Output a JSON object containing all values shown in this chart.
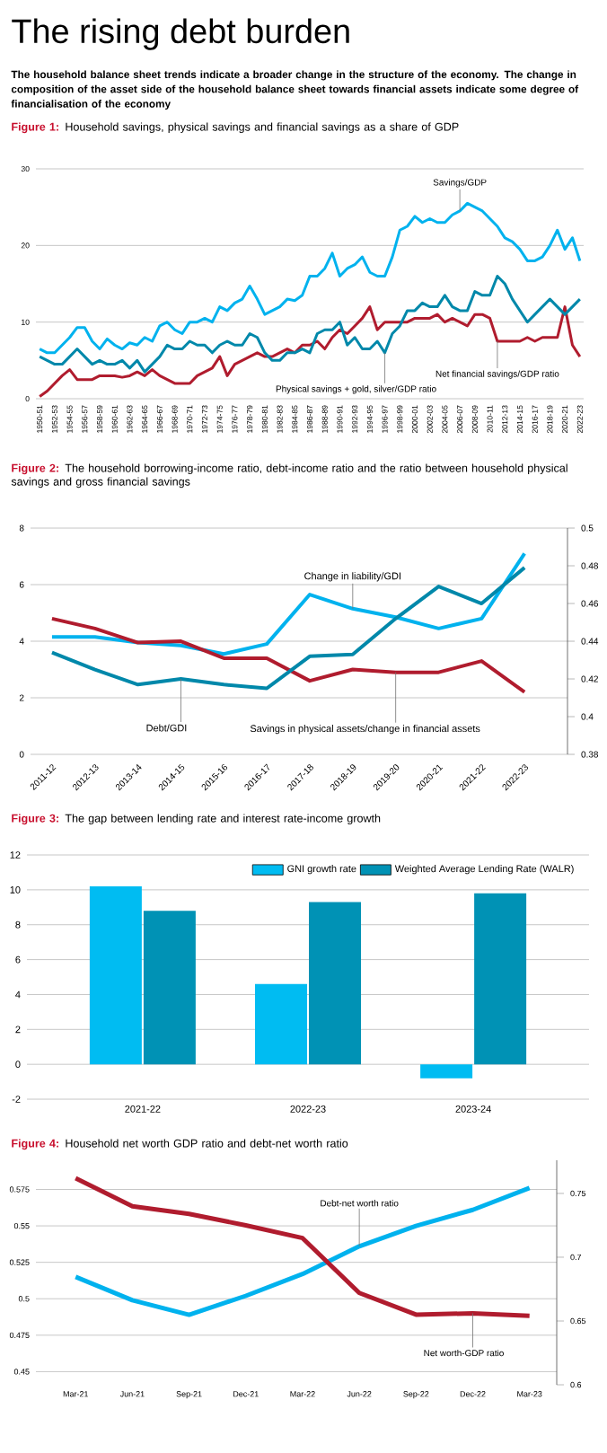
{
  "chart_data": [
    {
      "type": "other",
      "title": "The rising debt burden",
      "subtitle": "The household balance sheet trends indicate a broader change in the structure of the economy. The change in composition of the asset side of the household balance sheet towards financial assets indicate some degree of financialisation of the economy"
    },
    {
      "type": "line",
      "title": "**Figure 1:** Household savings, physical savings and financial savings as a share of GDP",
      "categories": [
        "1950-51",
        null,
        "1952-53",
        null,
        "1954-55",
        null,
        "1956-57",
        null,
        "1958-59",
        null,
        "1960-61",
        null,
        "1962-63",
        null,
        "1964-65",
        null,
        "1966-67",
        null,
        "1968-69",
        null,
        "1970-71",
        null,
        "1972-73",
        null,
        "1974-75",
        null,
        "1976-77",
        null,
        "1978-79",
        null,
        "1980-81",
        null,
        "1982-83",
        null,
        "1984-85",
        null,
        "1986-87",
        null,
        "1988-89",
        null,
        "1990-91",
        null,
        "1992-93",
        null,
        "1994-95",
        null,
        "1996-97",
        null,
        "1998-99",
        null,
        "2000-01",
        null,
        "2002-03",
        null,
        "2004-05",
        null,
        "2006-07",
        null,
        "2008-09",
        null,
        "2010-11",
        null,
        "2012-13",
        null,
        "2014-15",
        null,
        "2016-17",
        null,
        "2018-19",
        null,
        "2020-21",
        null,
        "2022-23"
      ],
      "series": [
        {
          "name": "Savings/GDP",
          "color": "#00b2ee",
          "values": [
            6.5,
            6,
            6,
            7,
            8,
            9.3,
            9.3,
            7.5,
            6.5,
            7.8,
            7,
            6.5,
            7.3,
            7,
            8,
            7.5,
            9.5,
            10,
            9,
            8.5,
            10,
            10,
            10.5,
            10,
            12,
            11.5,
            12.5,
            13,
            14.7,
            13,
            11,
            11.5,
            12,
            13,
            12.8,
            13.5,
            16,
            16,
            17,
            19,
            16,
            17,
            17.5,
            18.5,
            16.5,
            16,
            16,
            18.5,
            22,
            22.5,
            23.8,
            23,
            23.5,
            23,
            23,
            24,
            24.5,
            25.5,
            25,
            24.5,
            23.5,
            22.5,
            21,
            20.5,
            19.5,
            18,
            18,
            18.5,
            20,
            22,
            19.5,
            21,
            18
          ]
        },
        {
          "name": "Net financial savings/GDP ratio",
          "color": "#b01c2e",
          "values": [
            0.3,
            1,
            2,
            3,
            3.8,
            2.5,
            2.5,
            2.5,
            3,
            3,
            3,
            2.8,
            3,
            3.5,
            3,
            3.8,
            3,
            2.5,
            2,
            2,
            2,
            3,
            3.5,
            4,
            5.5,
            3,
            4.5,
            5,
            5.5,
            6,
            5.5,
            5.5,
            6,
            6.5,
            6,
            7,
            7,
            7.5,
            6.5,
            8,
            9,
            8.5,
            9.5,
            10.5,
            12,
            9,
            10,
            10,
            10,
            10,
            10.5,
            10.5,
            10.5,
            11,
            10,
            10.5,
            10,
            9.5,
            11,
            11,
            10.5,
            7.5,
            7.5,
            7.5,
            7.5,
            8,
            7.5,
            8,
            8,
            8,
            12,
            7,
            5.5
          ]
        },
        {
          "name": "Physical savings + gold, silver/GDP ratio",
          "color": "#0088aa",
          "values": [
            5.5,
            5,
            4.5,
            4.5,
            5.5,
            6.5,
            5.5,
            4.5,
            5,
            4.5,
            4.5,
            5,
            4,
            5,
            3.5,
            4.5,
            5.5,
            7,
            6.5,
            6.5,
            7.5,
            7,
            7,
            6,
            7,
            7.5,
            7,
            7,
            8.5,
            8,
            6,
            5,
            5,
            6,
            6,
            6.5,
            6,
            8.5,
            9,
            9,
            10,
            7,
            8,
            6.5,
            6.5,
            7.5,
            6,
            8.5,
            9.5,
            11.5,
            11.5,
            12.5,
            12,
            12,
            13.5,
            12,
            11.5,
            11.5,
            14,
            13.5,
            13.5,
            16,
            15,
            13,
            11.5,
            10,
            11,
            12,
            13,
            12,
            11,
            12,
            13
          ]
        }
      ],
      "ylim": [
        0,
        30
      ],
      "yticks": [
        0,
        10,
        20,
        30
      ],
      "grid": "y"
    },
    {
      "type": "line",
      "title": "**Figure 2:** The household borrowing-income ratio, debt-income ratio and the ratio between household physical savings and gross financial savings",
      "categories": [
        "2011-12",
        "2012-13",
        "2013-14",
        "2014-15",
        "2015-16",
        "2016-17",
        "2017-18",
        "2018-19",
        "2019-20",
        "2020-21",
        "2021-22",
        "2022-23"
      ],
      "series": [
        {
          "name": "Change in liability/GDI",
          "color": "#00b2ee",
          "values": [
            4.15,
            4.15,
            3.95,
            3.85,
            3.55,
            3.9,
            5.65,
            5.15,
            4.85,
            4.45,
            4.8,
            7.1
          ]
        },
        {
          "name": "Debt/GDI",
          "color": "#0088aa",
          "axis": "y2",
          "values": [
            0.434,
            0.425,
            0.417,
            0.42,
            0.417,
            0.415,
            0.432,
            0.433,
            0.452,
            0.469,
            0.46,
            0.479
          ]
        },
        {
          "name": "Savings in physical assets/change in financial assets",
          "color": "#b01c2e",
          "values": [
            4.8,
            4.45,
            3.95,
            4.0,
            3.4,
            3.4,
            2.6,
            3.0,
            2.9,
            2.9,
            3.3,
            2.2
          ]
        }
      ],
      "ylim": [
        0,
        8
      ],
      "yticks": [
        0,
        2,
        4,
        6,
        8
      ],
      "y2lim": [
        0.38,
        0.5
      ],
      "y2ticks": [
        0.38,
        0.4,
        0.42,
        0.44,
        0.46,
        0.48,
        0.5
      ],
      "grid": "y"
    },
    {
      "type": "bar",
      "title": "**Figure 3:** The gap between lending rate and interest rate-income growth",
      "categories": [
        "2021-22",
        "2022-23",
        "2023-24"
      ],
      "series": [
        {
          "name": "GNI growth rate",
          "color": "#00bcf2",
          "values": [
            10.2,
            4.6,
            -0.8
          ]
        },
        {
          "name": "Weighted Average Lending Rate (WALR)",
          "color": "#0092b5",
          "values": [
            8.8,
            9.3,
            9.8
          ]
        }
      ],
      "ylim": [
        -2,
        12
      ],
      "yticks": [
        -2,
        0,
        2,
        4,
        6,
        8,
        10,
        12
      ],
      "grid": "y",
      "legend": "top right"
    },
    {
      "type": "line",
      "title": "**Figure 4:** Household net worth GDP ratio and debt-net worth ratio",
      "categories": [
        "Mar-21",
        "Jun-21",
        "Sep-21",
        "Dec-21",
        "Mar-22",
        "Jun-22",
        "Sep-22",
        "Dec-22",
        "Mar-23"
      ],
      "series": [
        {
          "name": "Debt-net worth ratio",
          "color": "#00b2ee",
          "values": [
            0.515,
            0.499,
            0.489,
            0.502,
            0.517,
            0.536,
            0.55,
            0.561,
            0.576
          ]
        },
        {
          "name": "Net worth-GDP ratio",
          "color": "#b01c2e",
          "axis": "y2",
          "values": [
            0.762,
            0.74,
            0.734,
            0.725,
            0.715,
            0.672,
            0.655,
            0.656,
            0.654
          ]
        }
      ],
      "ylim": [
        0.441,
        0.595
      ],
      "yticks": [
        0.45,
        0.475,
        0.5,
        0.525,
        0.55,
        0.575
      ],
      "y2lim": [
        0.6,
        0.776
      ],
      "y2ticks": [
        0.6,
        0.65,
        0.7,
        0.75
      ],
      "grid": "y"
    }
  ]
}
